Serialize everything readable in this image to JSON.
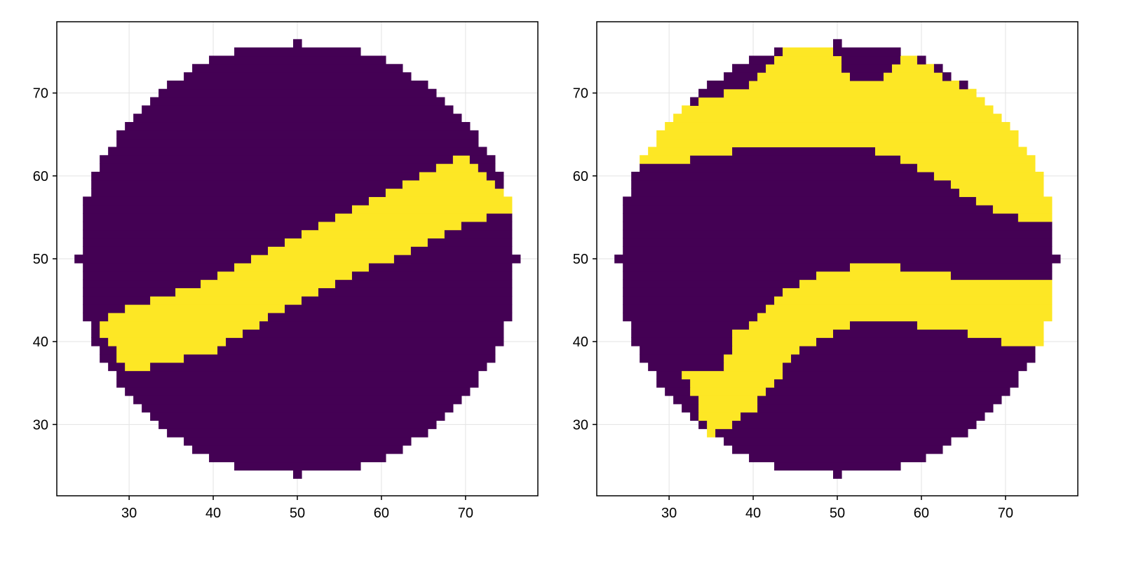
{
  "colors": {
    "low": "#440154",
    "high": "#fde725",
    "grid": "#e3e3e3"
  },
  "chart_data": [
    {
      "type": "heatmap",
      "title": "",
      "xlabel": "",
      "ylabel": "",
      "xlim": [
        21.4,
        78.6
      ],
      "ylim": [
        21.4,
        78.6
      ],
      "xticks": [
        30,
        40,
        50,
        60,
        70
      ],
      "yticks": [
        30,
        40,
        50,
        60,
        70
      ],
      "grid": true,
      "legend": "none",
      "mask": "circle",
      "circle": {
        "cx": 50,
        "cy": 50,
        "r": 26
      },
      "values": [
        0,
        1
      ],
      "bands": [
        {
          "value": 1,
          "lower": [
            [
              26,
              42.5
            ],
            [
              30,
              36.5
            ],
            [
              40,
              39
            ],
            [
              50,
              45
            ],
            [
              60,
              49.5
            ],
            [
              70,
              54.5
            ],
            [
              76,
              56
            ]
          ],
          "upper": [
            [
              26,
              42.5
            ],
            [
              30,
              44
            ],
            [
              40,
              47.5
            ],
            [
              50,
              52.5
            ],
            [
              60,
              57.5
            ],
            [
              70,
              62.5
            ],
            [
              76,
              56
            ]
          ]
        }
      ]
    },
    {
      "type": "heatmap",
      "title": "",
      "xlabel": "",
      "ylabel": "",
      "xlim": [
        21.4,
        78.6
      ],
      "ylim": [
        21.4,
        78.6
      ],
      "xticks": [
        30,
        40,
        50,
        60,
        70
      ],
      "yticks": [
        30,
        40,
        50,
        60,
        70
      ],
      "grid": true,
      "legend": "none",
      "mask": "circle",
      "circle": {
        "cx": 50,
        "cy": 50,
        "r": 26
      },
      "values": [
        0,
        1
      ],
      "bands": [
        {
          "value": 1,
          "lower": [
            [
              24,
              61
            ],
            [
              30,
              61.5
            ],
            [
              35,
              62.5
            ],
            [
              40,
              63.5
            ],
            [
              45,
              64
            ],
            [
              50,
              63.5
            ],
            [
              55,
              63
            ],
            [
              60,
              61
            ],
            [
              65,
              58
            ],
            [
              70,
              55.5
            ],
            [
              76,
              54
            ]
          ],
          "upper": [
            [
              24,
              63
            ],
            [
              30,
              68
            ],
            [
              35,
              69.5
            ],
            [
              40,
              71
            ],
            [
              44,
              75.5
            ],
            [
              49,
              76
            ],
            [
              52,
              71
            ],
            [
              55,
              71
            ],
            [
              58,
              74.5
            ],
            [
              62,
              72.5
            ],
            [
              66,
              70
            ],
            [
              70,
              67
            ],
            [
              76,
              61
            ]
          ]
        },
        {
          "value": 1,
          "lower": [
            [
              28,
              35
            ],
            [
              32,
              35.5
            ],
            [
              35,
              28.5
            ],
            [
              38,
              30.5
            ],
            [
              40,
              32
            ],
            [
              45,
              38.5
            ],
            [
              50,
              41.5
            ],
            [
              55,
              43
            ],
            [
              60,
              42
            ],
            [
              66,
              41
            ],
            [
              70,
              40
            ],
            [
              76,
              40
            ]
          ],
          "upper": [
            [
              28,
              35
            ],
            [
              32,
              36
            ],
            [
              36,
              36
            ],
            [
              38,
              41
            ],
            [
              41,
              43.5
            ],
            [
              44,
              46
            ],
            [
              48,
              48
            ],
            [
              52,
              49
            ],
            [
              57,
              49
            ],
            [
              62,
              48.5
            ],
            [
              66,
              47
            ],
            [
              76,
              47
            ]
          ]
        }
      ]
    }
  ]
}
